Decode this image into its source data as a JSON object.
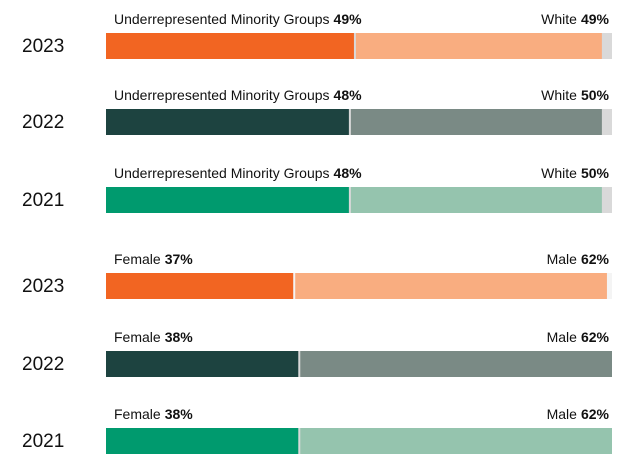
{
  "chart_data": [
    {
      "type": "bar",
      "categories": [
        "2023",
        "2022",
        "2021"
      ],
      "xlim": [
        0,
        100
      ],
      "series": [
        {
          "name": "Underrepresented Minority Groups",
          "values": [
            49,
            48,
            48
          ],
          "value_labels": [
            "49%",
            "48%",
            "48%"
          ],
          "colors": [
            "#f26522",
            "#1d4340",
            "#009a6e"
          ]
        },
        {
          "name": "White",
          "values": [
            49,
            50,
            50
          ],
          "value_labels": [
            "49%",
            "50%",
            "50%"
          ],
          "colors": [
            "#f9ad80",
            "#7a8a85",
            "#95c4ae"
          ]
        }
      ]
    },
    {
      "type": "bar",
      "categories": [
        "2023",
        "2022",
        "2021"
      ],
      "xlim": [
        0,
        100
      ],
      "series": [
        {
          "name": "Female",
          "values": [
            37,
            38,
            38
          ],
          "value_labels": [
            "37%",
            "38%",
            "38%"
          ],
          "colors": [
            "#f26522",
            "#1d4340",
            "#009a6e"
          ]
        },
        {
          "name": "Male",
          "values": [
            62,
            62,
            62
          ],
          "value_labels": [
            "62%",
            "62%",
            "62%"
          ],
          "colors": [
            "#f9ad80",
            "#7a8a85",
            "#95c4ae"
          ]
        }
      ]
    }
  ]
}
